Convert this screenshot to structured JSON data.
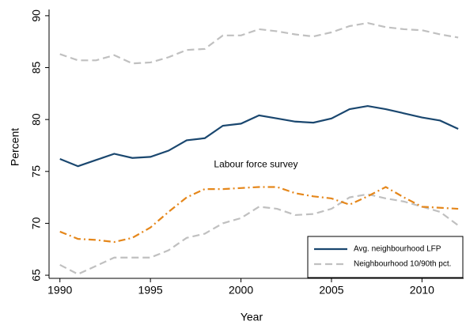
{
  "chart_data": {
    "type": "line",
    "x_label": "Year",
    "y_label": "Percent",
    "x": [
      1990,
      1991,
      1992,
      1993,
      1994,
      1995,
      1996,
      1997,
      1998,
      1999,
      2000,
      2001,
      2002,
      2003,
      2004,
      2005,
      2006,
      2007,
      2008,
      2009,
      2010,
      2011,
      2012
    ],
    "series": [
      {
        "name": "Avg. neighbourhood LFP",
        "color": "#1a476f",
        "dash": "solid",
        "values": [
          76.2,
          75.5,
          76.1,
          76.7,
          76.3,
          76.4,
          77.0,
          78.0,
          78.2,
          79.4,
          79.6,
          80.4,
          80.1,
          79.8,
          79.7,
          80.1,
          81.0,
          81.3,
          81.0,
          80.6,
          80.2,
          79.9,
          79.1
        ]
      }
    ],
    "band": {
      "name": "Neighbourhood 10/90th pct.",
      "color": "#c0c0c0",
      "dash": "dashed",
      "lower": [
        66.0,
        65.1,
        65.9,
        66.7,
        66.7,
        66.7,
        67.4,
        68.6,
        69.0,
        70.0,
        70.5,
        71.6,
        71.4,
        70.8,
        70.9,
        71.4,
        72.5,
        72.8,
        72.4,
        72.1,
        71.6,
        71.1,
        69.8
      ],
      "upper": [
        86.3,
        85.7,
        85.7,
        86.2,
        85.4,
        85.5,
        86.0,
        86.7,
        86.8,
        88.1,
        88.1,
        88.7,
        88.5,
        88.2,
        88.0,
        88.4,
        89.0,
        89.3,
        88.9,
        88.7,
        88.6,
        88.2,
        87.9
      ]
    },
    "annotated_series": {
      "label": "Labour force survey",
      "color": "#e5871b",
      "dash": "dashdot",
      "values": [
        69.2,
        68.5,
        68.4,
        68.2,
        68.6,
        69.6,
        71.1,
        72.5,
        73.3,
        73.3,
        73.4,
        73.5,
        73.5,
        72.9,
        72.6,
        72.4,
        71.8,
        72.6,
        73.5,
        72.5,
        71.6,
        71.5,
        71.4
      ]
    },
    "xlim": [
      1989.4,
      2012.3
    ],
    "ylim": [
      64.7,
      90.6
    ],
    "xticks": [
      1990,
      1995,
      2000,
      2005,
      2010
    ],
    "yticks": [
      65,
      70,
      75,
      80,
      85,
      90
    ],
    "grid": false,
    "legend_position": "lower right"
  }
}
